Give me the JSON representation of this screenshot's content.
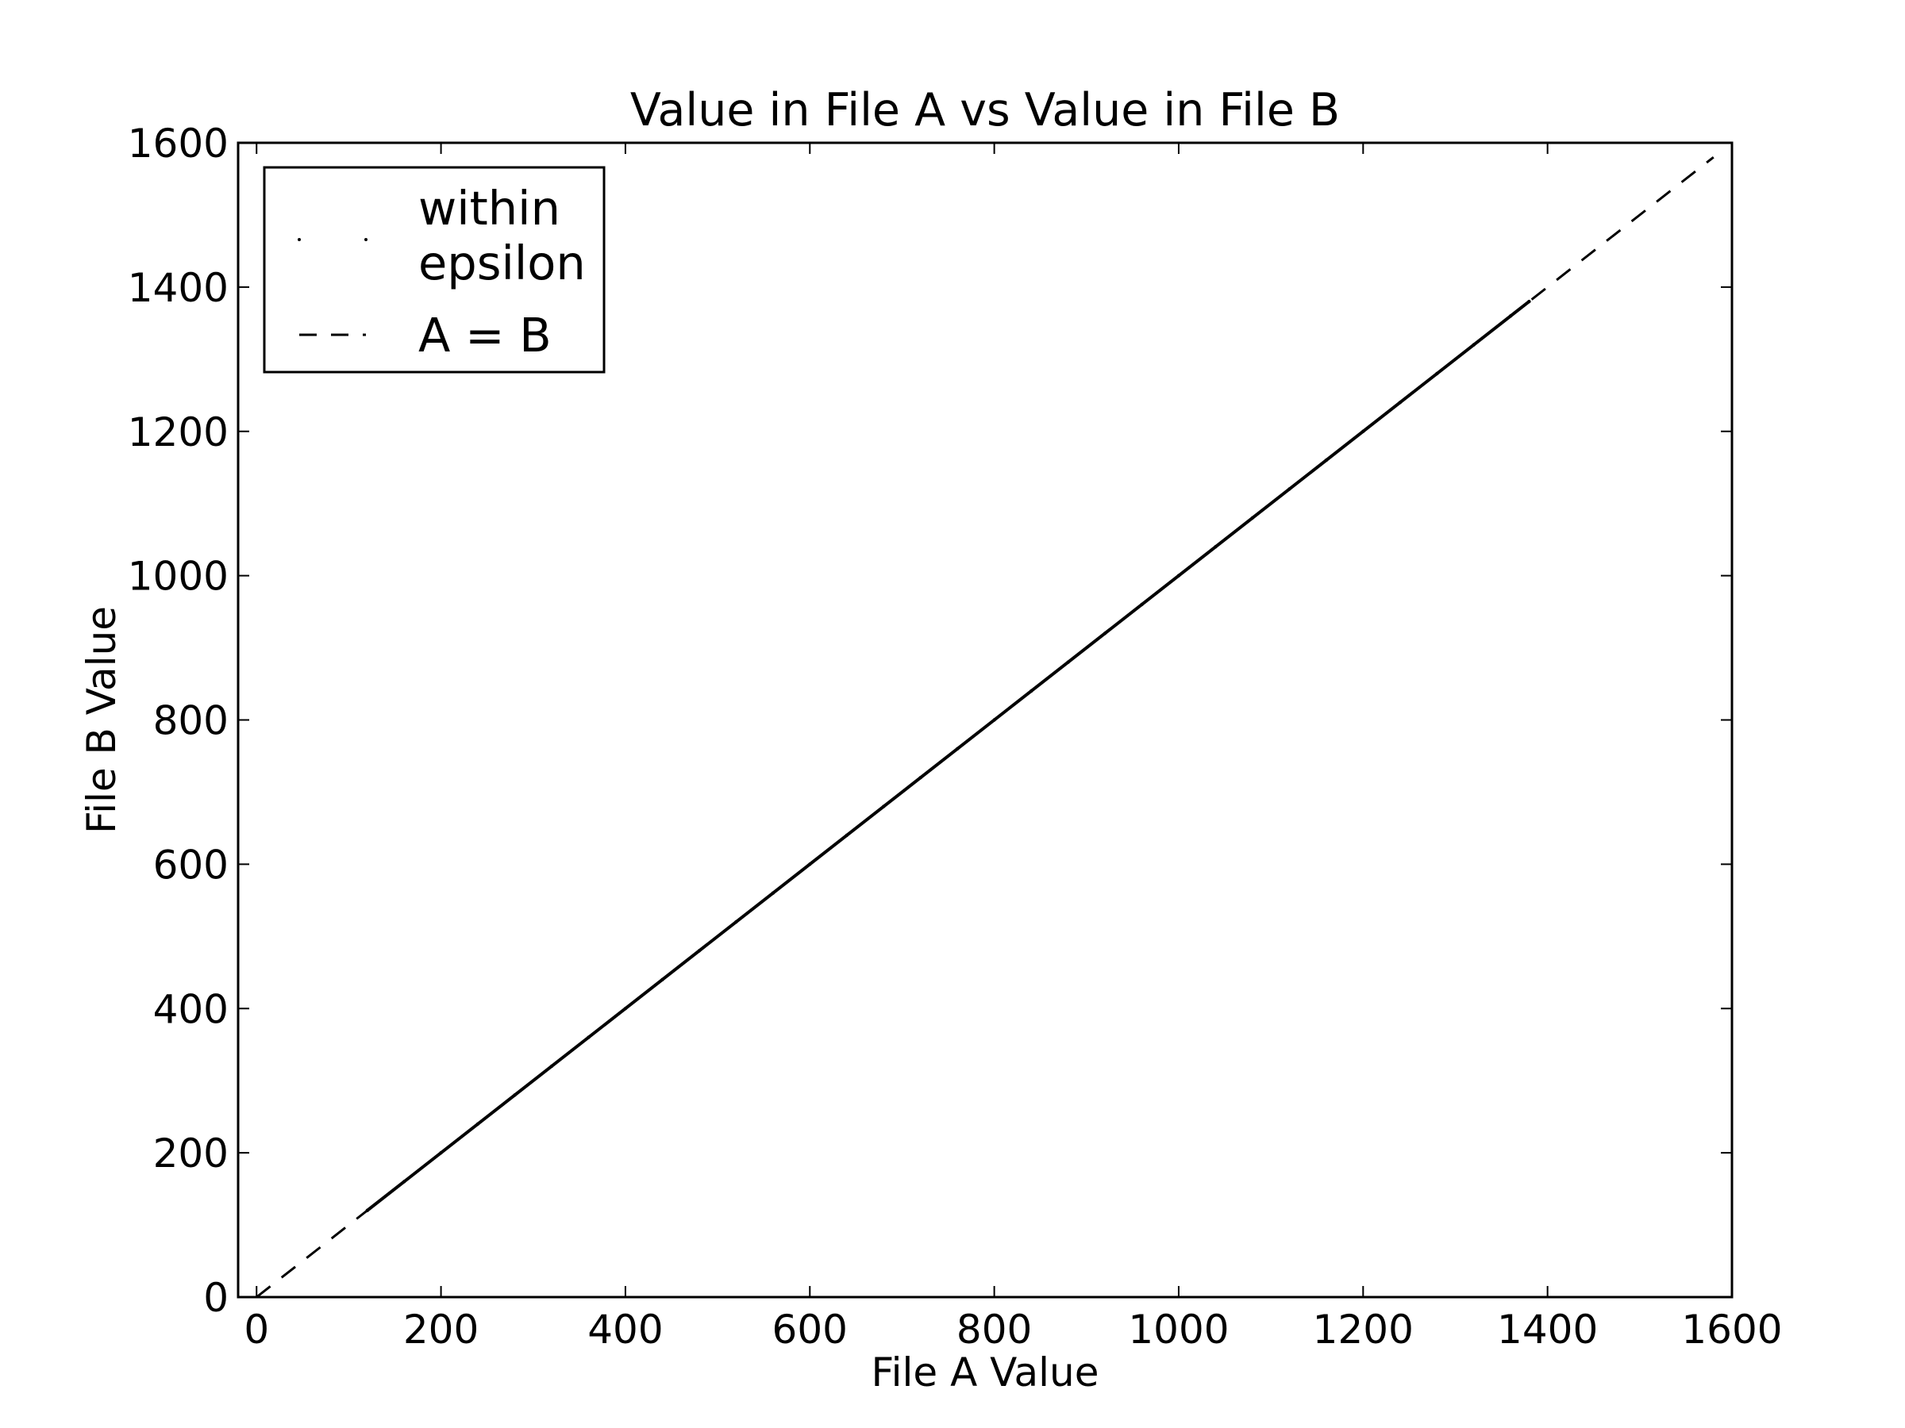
{
  "chart_data": {
    "type": "scatter",
    "title": "Value in File A vs Value in File B",
    "xlabel": "File A Value",
    "ylabel": "File B Value",
    "xlim": [
      -20,
      1600
    ],
    "ylim": [
      0,
      1600
    ],
    "x_ticks": [
      "0",
      "200",
      "400",
      "600",
      "800",
      "1000",
      "1200",
      "1400",
      "1600"
    ],
    "y_ticks": [
      "0",
      "200",
      "400",
      "600",
      "800",
      "1000",
      "1200",
      "1400",
      "1600"
    ],
    "legend": {
      "placement": "top-left",
      "entries": [
        {
          "label": "within epsilon",
          "label_lines": [
            "within",
            "epsilon"
          ],
          "marker": "point"
        },
        {
          "label": "A = B",
          "marker": "dashed-line"
        }
      ]
    },
    "series": [
      {
        "name": "within epsilon",
        "type": "scatter",
        "x_range": [
          120,
          1380
        ],
        "points": [
          [
            120,
            120
          ],
          [
            160,
            160
          ],
          [
            200,
            200
          ],
          [
            240,
            240
          ],
          [
            280,
            280
          ],
          [
            320,
            320
          ],
          [
            360,
            360
          ],
          [
            400,
            400
          ],
          [
            440,
            440
          ],
          [
            480,
            480
          ],
          [
            520,
            520
          ],
          [
            560,
            560
          ],
          [
            600,
            600
          ],
          [
            640,
            640
          ],
          [
            680,
            680
          ],
          [
            720,
            720
          ],
          [
            760,
            760
          ],
          [
            800,
            800
          ],
          [
            840,
            840
          ],
          [
            880,
            880
          ],
          [
            920,
            920
          ],
          [
            960,
            960
          ],
          [
            1000,
            1000
          ],
          [
            1040,
            1040
          ],
          [
            1080,
            1080
          ],
          [
            1120,
            1120
          ],
          [
            1160,
            1160
          ],
          [
            1200,
            1200
          ],
          [
            1240,
            1240
          ],
          [
            1280,
            1280
          ],
          [
            1320,
            1320
          ],
          [
            1360,
            1360
          ],
          [
            1380,
            1380
          ]
        ]
      },
      {
        "name": "A = B",
        "type": "line",
        "style": "dashed",
        "points": [
          [
            0,
            0
          ],
          [
            1580,
            1580
          ]
        ]
      }
    ],
    "grid": false,
    "colors": {
      "line": "#000000",
      "background": "#ffffff"
    }
  }
}
